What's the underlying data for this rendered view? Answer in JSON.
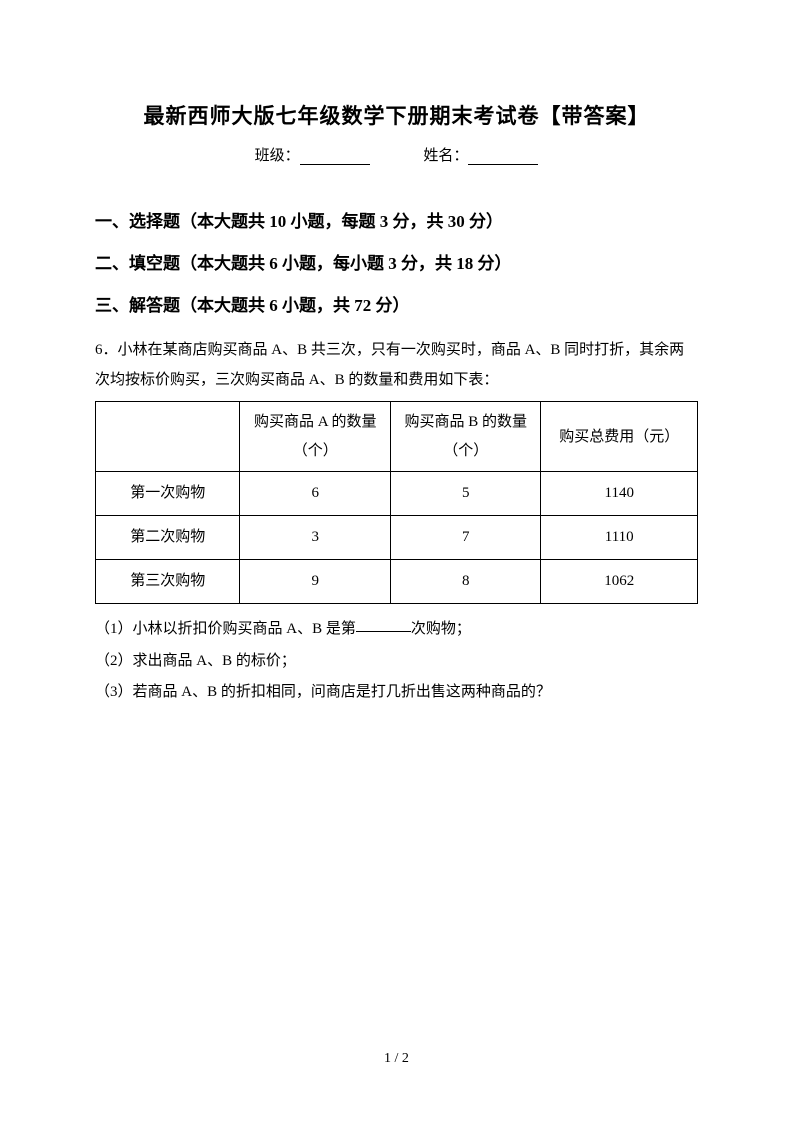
{
  "title": "最新西师大版七年级数学下册期末考试卷【带答案】",
  "formLabels": {
    "class": "班级：",
    "name": "姓名："
  },
  "sections": {
    "s1": "一、选择题（本大题共 10 小题，每题 3 分，共 30 分）",
    "s2": "二、填空题（本大题共 6 小题，每小题 3 分，共 18 分）",
    "s3": "三、解答题（本大题共 6 小题，共 72 分）"
  },
  "question6": {
    "intro": "6．小林在某商店购买商品 A、B 共三次，只有一次购买时，商品 A、B 同时打折，其余两次均按标价购买，三次购买商品 A、B 的数量和费用如下表：",
    "table": {
      "headers": {
        "blank": "",
        "colA": "购买商品 A 的数量（个）",
        "colB": "购买商品 B 的数量（个）",
        "colTotal": "购买总费用（元）"
      },
      "rows": [
        {
          "label": "第一次购物",
          "qtyA": "6",
          "qtyB": "5",
          "total": "1140"
        },
        {
          "label": "第二次购物",
          "qtyA": "3",
          "qtyB": "7",
          "total": "1110"
        },
        {
          "label": "第三次购物",
          "qtyA": "9",
          "qtyB": "8",
          "total": "1062"
        }
      ]
    },
    "subQuestions": {
      "q1a": "（1）小林以折扣价购买商品 A、B 是第",
      "q1b": "次购物；",
      "q2": "（2）求出商品 A、B 的标价；",
      "q3": "（3）若商品 A、B 的折扣相同，问商店是打几折出售这两种商品的？"
    }
  },
  "pageNumber": "1 / 2"
}
